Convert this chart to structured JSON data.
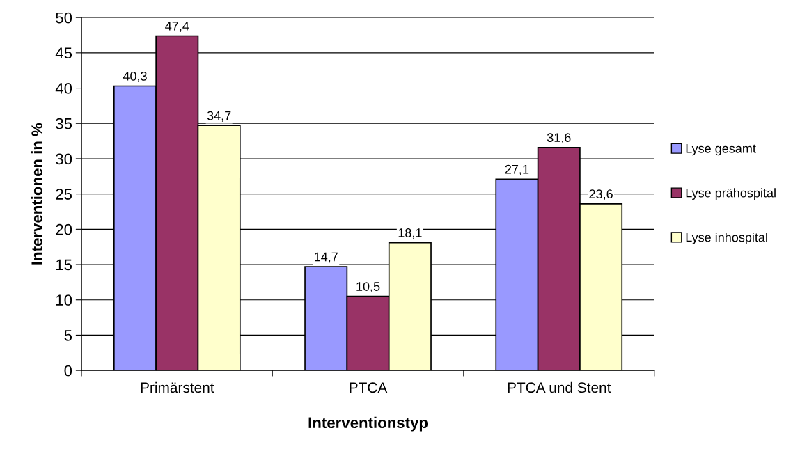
{
  "chart_data": {
    "type": "bar",
    "xlabel": "Interventionstyp",
    "ylabel": "Interventionen in %",
    "categories": [
      "Primärstent",
      "PTCA",
      "PTCA und Stent"
    ],
    "series": [
      {
        "name": "Lyse gesamt",
        "color": "#9999ff",
        "values": [
          40.3,
          14.7,
          27.1
        ],
        "value_labels": [
          "40,3",
          "14,7",
          "27,1"
        ]
      },
      {
        "name": "Lyse prähospital",
        "color": "#993366",
        "values": [
          47.4,
          10.5,
          31.6
        ],
        "value_labels": [
          "47,4",
          "10,5",
          "31,6"
        ]
      },
      {
        "name": "Lyse inhospital",
        "color": "#ffffcc",
        "values": [
          34.7,
          18.1,
          23.6
        ],
        "value_labels": [
          "34,7",
          "18,1",
          "23,6"
        ]
      }
    ],
    "ylim": [
      0,
      50
    ],
    "yticks": [
      0,
      5,
      10,
      15,
      20,
      25,
      30,
      35,
      40,
      45,
      50
    ],
    "grid": "y",
    "legend": "right"
  }
}
